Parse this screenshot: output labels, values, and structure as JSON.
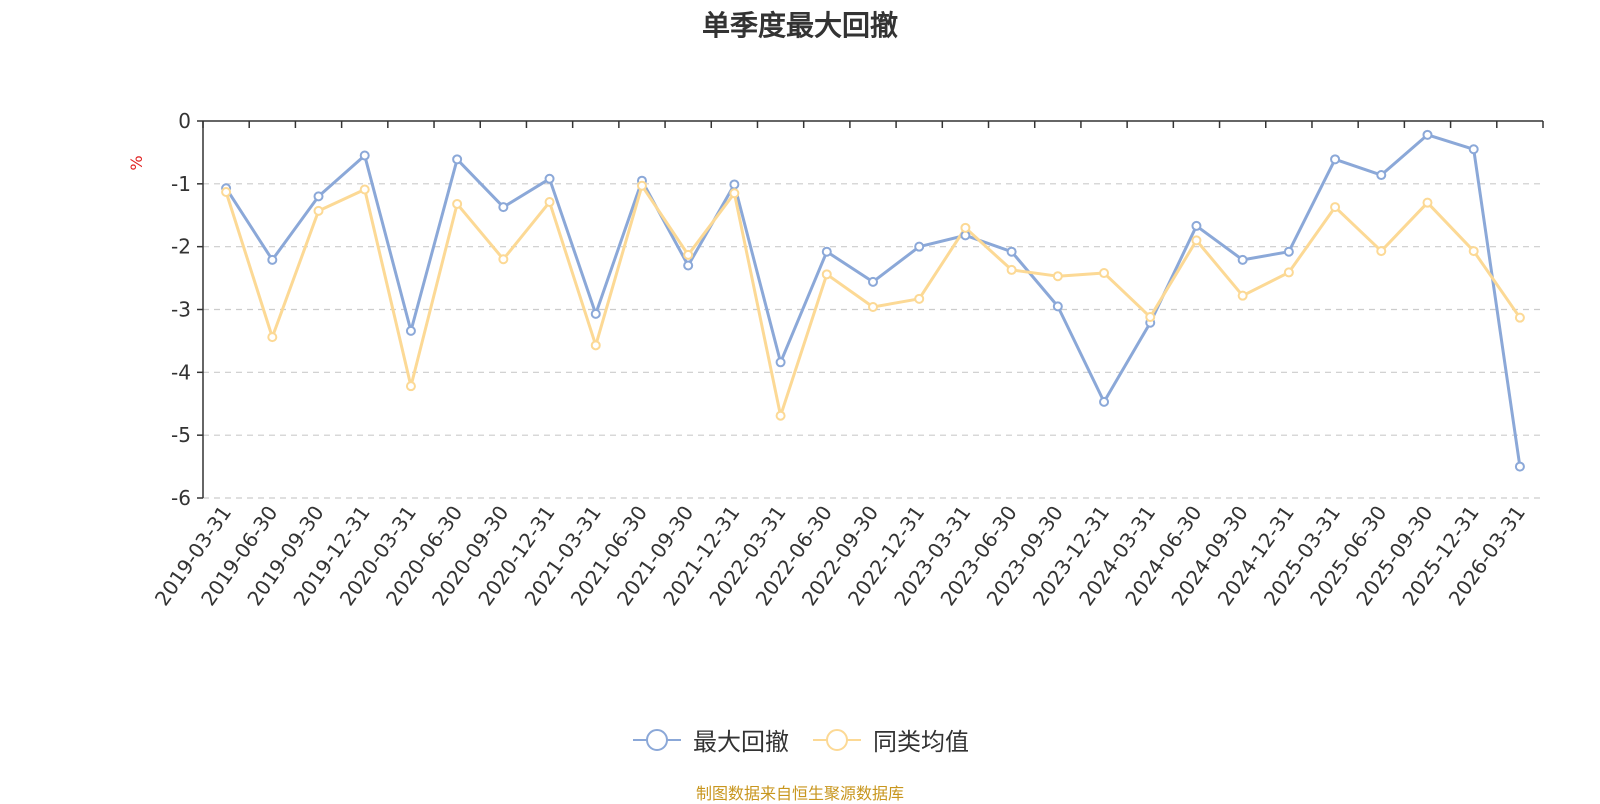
{
  "chart_data": {
    "type": "line",
    "title": "单季度最大回撤",
    "ylabel": "%",
    "ylim": [
      -6,
      0
    ],
    "yticks": [
      0,
      -1,
      -2,
      -3,
      -4,
      -5,
      -6
    ],
    "grid": true,
    "legend_position": "bottom",
    "categories": [
      "2019-03-31",
      "2019-06-30",
      "2019-09-30",
      "2019-12-31",
      "2020-03-31",
      "2020-06-30",
      "2020-09-30",
      "2020-12-31",
      "2021-03-31",
      "2021-06-30",
      "2021-09-30",
      "2021-12-31",
      "2022-03-31",
      "2022-06-30",
      "2022-09-30",
      "2022-12-31",
      "2023-03-31",
      "2023-06-30",
      "2023-09-30",
      "2023-12-31",
      "2024-03-31",
      "2024-06-30",
      "2024-09-30",
      "2024-12-31",
      "2025-03-31",
      "2025-06-30",
      "2025-09-30",
      "2025-12-31",
      "2026-03-31"
    ],
    "series": [
      {
        "name": "最大回撤",
        "color": "#8ba8d8",
        "values": [
          -1.07,
          -2.21,
          -1.2,
          -0.55,
          -3.34,
          -0.61,
          -1.37,
          -0.92,
          -3.07,
          -0.95,
          -2.3,
          -1.01,
          -3.84,
          -2.08,
          -2.56,
          -2.0,
          -1.82,
          -2.08,
          -2.95,
          -4.47,
          -3.21,
          -1.67,
          -2.21,
          -2.08,
          -0.61,
          -0.86,
          -0.22,
          -0.45,
          -5.5
        ]
      },
      {
        "name": "同类均值",
        "color": "#fcd995",
        "values": [
          -1.13,
          -3.44,
          -1.43,
          -1.09,
          -4.22,
          -1.32,
          -2.2,
          -1.29,
          -3.57,
          -1.03,
          -2.13,
          -1.15,
          -4.69,
          -2.44,
          -2.96,
          -2.83,
          -1.7,
          -2.37,
          -2.47,
          -2.42,
          -3.12,
          -1.9,
          -2.78,
          -2.41,
          -1.37,
          -2.07,
          -1.3,
          -2.07,
          -3.13
        ]
      }
    ]
  },
  "footer": {
    "source": "制图数据来自恒生聚源数据库"
  }
}
